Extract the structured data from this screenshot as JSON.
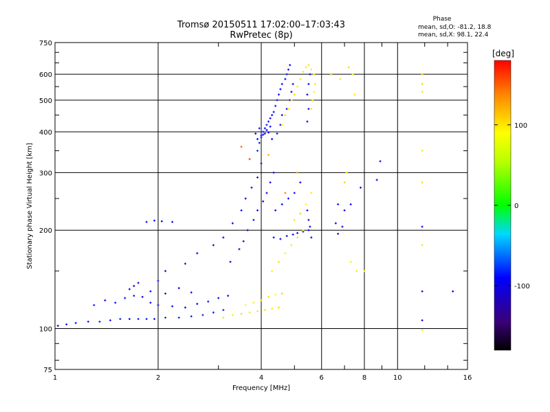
{
  "chart_data": {
    "type": "scatter",
    "title": "Tromsø 20150511 17:02:00–17:03:43",
    "subtitle": "RwPretec (8p)",
    "xlabel": "Frequency [MHz]",
    "ylabel": "Stationary phase Virtual Height [km]",
    "x_scale": "log",
    "y_scale": "log",
    "xlim": [
      1,
      16
    ],
    "ylim": [
      75,
      750
    ],
    "x_ticks": [
      "1",
      "2",
      "4",
      "6",
      "8",
      "10",
      "16"
    ],
    "x_tick_values": [
      1,
      2,
      4,
      6,
      8,
      10,
      16
    ],
    "y_ticks": [
      "75",
      "100",
      "200",
      "300",
      "400",
      "500",
      "600",
      "750"
    ],
    "y_tick_values": [
      75,
      100,
      200,
      300,
      400,
      500,
      600,
      750
    ],
    "grid": true,
    "phase_legend": {
      "title": "Phase",
      "line1": "mean, sd,O: -81.2, 18.8",
      "line2": "mean, sd,X:  98.1, 22.4"
    },
    "colorbar": {
      "label": "[deg]",
      "ticks": [
        "100",
        "0",
        "-100"
      ],
      "tick_values": [
        100,
        0,
        -100
      ],
      "range": [
        -180,
        180
      ]
    },
    "series": [
      {
        "mode": "O",
        "points": [
          [
            1.02,
            102,
            -90
          ],
          [
            1.08,
            103,
            -88
          ],
          [
            1.15,
            104,
            -85
          ],
          [
            1.25,
            105,
            -87
          ],
          [
            1.35,
            105,
            -84
          ],
          [
            1.45,
            106,
            -86
          ],
          [
            1.55,
            107,
            -83
          ],
          [
            1.65,
            107,
            -88
          ],
          [
            1.75,
            107,
            -85
          ],
          [
            1.85,
            107,
            -84
          ],
          [
            1.95,
            107,
            -86
          ],
          [
            2.1,
            108,
            -82
          ],
          [
            2.3,
            108,
            -84
          ],
          [
            2.5,
            109,
            -83
          ],
          [
            2.7,
            110,
            -80
          ],
          [
            2.9,
            112,
            -85
          ],
          [
            3.1,
            114,
            -82
          ],
          [
            1.3,
            118,
            -85
          ],
          [
            1.4,
            122,
            -95
          ],
          [
            1.5,
            120,
            -90
          ],
          [
            1.6,
            124,
            -92
          ],
          [
            1.7,
            126,
            -88
          ],
          [
            1.8,
            125,
            -96
          ],
          [
            1.9,
            120,
            -90
          ],
          [
            2.0,
            118,
            -95
          ],
          [
            2.2,
            117,
            -90
          ],
          [
            2.4,
            116,
            -100
          ],
          [
            2.6,
            119,
            -92
          ],
          [
            2.8,
            121,
            -88
          ],
          [
            3.0,
            124,
            -97
          ],
          [
            3.2,
            126,
            -94
          ],
          [
            1.65,
            132,
            -90
          ],
          [
            1.7,
            135,
            -95
          ],
          [
            1.9,
            130,
            -92
          ],
          [
            2.0,
            140,
            -86
          ],
          [
            2.1,
            128,
            -98
          ],
          [
            1.75,
            138,
            -100
          ],
          [
            2.3,
            133,
            -96
          ],
          [
            2.5,
            129,
            -105
          ],
          [
            1.85,
            212,
            -95
          ],
          [
            1.95,
            214,
            -92
          ],
          [
            2.05,
            213,
            -90
          ],
          [
            2.2,
            212,
            -96
          ],
          [
            2.1,
            150,
            -110
          ],
          [
            2.4,
            158,
            -95
          ],
          [
            2.6,
            170,
            -100
          ],
          [
            2.9,
            180,
            -96
          ],
          [
            3.1,
            190,
            -90
          ],
          [
            3.3,
            210,
            -95
          ],
          [
            3.5,
            230,
            -92
          ],
          [
            3.6,
            250,
            -98
          ],
          [
            3.75,
            270,
            -95
          ],
          [
            3.9,
            290,
            -100
          ],
          [
            4.0,
            320,
            -95
          ],
          [
            3.25,
            160,
            -100
          ],
          [
            3.45,
            175,
            -95
          ],
          [
            3.55,
            185,
            -105
          ],
          [
            3.65,
            200,
            -110
          ],
          [
            3.8,
            215,
            -98
          ],
          [
            3.9,
            230,
            -92
          ],
          [
            4.05,
            245,
            -100
          ],
          [
            4.15,
            260,
            -95
          ],
          [
            4.25,
            280,
            -100
          ],
          [
            4.35,
            300,
            -96
          ],
          [
            3.9,
            350,
            -80
          ],
          [
            3.95,
            370,
            -85
          ],
          [
            4.0,
            390,
            -90
          ],
          [
            4.05,
            400,
            -95
          ],
          [
            4.1,
            410,
            -88
          ],
          [
            4.15,
            420,
            -86
          ],
          [
            4.2,
            430,
            -90
          ],
          [
            4.25,
            440,
            -95
          ],
          [
            4.3,
            450,
            -92
          ],
          [
            4.35,
            460,
            -90
          ],
          [
            4.4,
            480,
            -86
          ],
          [
            4.45,
            500,
            -88
          ],
          [
            4.5,
            520,
            -94
          ],
          [
            4.55,
            540,
            -90
          ],
          [
            4.6,
            560,
            -92
          ],
          [
            4.7,
            580,
            -90
          ],
          [
            4.75,
            600,
            -88
          ],
          [
            4.8,
            620,
            -94
          ],
          [
            4.85,
            640,
            -96
          ],
          [
            3.9,
            380,
            -95
          ],
          [
            4.0,
            385,
            -88
          ],
          [
            4.05,
            392,
            -100
          ],
          [
            4.1,
            395,
            -92
          ],
          [
            4.2,
            398,
            -90
          ],
          [
            3.95,
            410,
            -86
          ],
          [
            4.15,
            405,
            -94
          ],
          [
            3.85,
            395,
            -90
          ],
          [
            4.25,
            415,
            -98
          ],
          [
            4.3,
            380,
            -90
          ],
          [
            4.45,
            395,
            -85
          ],
          [
            4.55,
            420,
            -95
          ],
          [
            4.6,
            450,
            -100
          ],
          [
            4.75,
            470,
            -90
          ],
          [
            4.85,
            500,
            -95
          ],
          [
            4.9,
            530,
            -90
          ],
          [
            4.95,
            560,
            -88
          ],
          [
            4.35,
            190,
            -90
          ],
          [
            4.55,
            188,
            -92
          ],
          [
            4.75,
            192,
            -95
          ],
          [
            4.95,
            194,
            -90
          ],
          [
            5.1,
            196,
            -88
          ],
          [
            5.3,
            198,
            -95
          ],
          [
            5.5,
            200,
            -90
          ],
          [
            4.4,
            230,
            -100
          ],
          [
            4.6,
            240,
            -95
          ],
          [
            4.8,
            250,
            -90
          ],
          [
            5.0,
            260,
            -98
          ],
          [
            5.2,
            280,
            -92
          ],
          [
            5.45,
            520,
            -90
          ],
          [
            5.5,
            560,
            -95
          ],
          [
            5.55,
            600,
            -92
          ],
          [
            5.5,
            470,
            -88
          ],
          [
            5.45,
            430,
            -92
          ],
          [
            5.45,
            230,
            -110
          ],
          [
            5.5,
            215,
            -120
          ],
          [
            5.55,
            205,
            -100
          ],
          [
            5.6,
            190,
            -115
          ],
          [
            6.6,
            210,
            -95
          ],
          [
            6.7,
            240,
            -100
          ],
          [
            6.9,
            205,
            -110
          ],
          [
            7.0,
            230,
            -95
          ],
          [
            7.3,
            240,
            -90
          ],
          [
            6.7,
            195,
            -100
          ],
          [
            7.8,
            270,
            -100
          ],
          [
            8.7,
            285,
            -90
          ],
          [
            8.9,
            325,
            -95
          ],
          [
            11.8,
            205,
            -95
          ],
          [
            11.8,
            130,
            -92
          ],
          [
            11.8,
            106,
            -110
          ],
          [
            14.5,
            130,
            -95
          ]
        ]
      },
      {
        "mode": "X",
        "points": [
          [
            3.1,
            108,
            100
          ],
          [
            3.3,
            110,
            95
          ],
          [
            3.5,
            111,
            105
          ],
          [
            3.7,
            112,
            98
          ],
          [
            3.9,
            113,
            100
          ],
          [
            4.1,
            114,
            102
          ],
          [
            4.3,
            115,
            96
          ],
          [
            4.5,
            116,
            104
          ],
          [
            3.6,
            118,
            90
          ],
          [
            3.8,
            120,
            95
          ],
          [
            4.0,
            122,
            110
          ],
          [
            4.2,
            125,
            100
          ],
          [
            4.4,
            127,
            92
          ],
          [
            4.6,
            128,
            106
          ],
          [
            4.3,
            150,
            98
          ],
          [
            4.5,
            160,
            102
          ],
          [
            4.7,
            170,
            95
          ],
          [
            4.9,
            180,
            100
          ],
          [
            5.1,
            190,
            104
          ],
          [
            5.3,
            200,
            96
          ],
          [
            5.0,
            215,
            98
          ],
          [
            5.2,
            225,
            105
          ],
          [
            5.4,
            240,
            95
          ],
          [
            5.6,
            260,
            100
          ],
          [
            4.6,
            420,
            98
          ],
          [
            4.7,
            450,
            102
          ],
          [
            4.8,
            470,
            96
          ],
          [
            4.9,
            500,
            100
          ],
          [
            5.0,
            520,
            105
          ],
          [
            5.1,
            550,
            95
          ],
          [
            5.2,
            580,
            100
          ],
          [
            5.3,
            610,
            102
          ],
          [
            5.4,
            630,
            98
          ],
          [
            5.5,
            640,
            104
          ],
          [
            5.6,
            620,
            95
          ],
          [
            5.7,
            600,
            100
          ],
          [
            5.6,
            470,
            100
          ],
          [
            5.65,
            500,
            105
          ],
          [
            5.7,
            530,
            95
          ],
          [
            5.75,
            560,
            98
          ],
          [
            6.4,
            600,
            110
          ],
          [
            6.8,
            580,
            100
          ],
          [
            7.2,
            630,
            105
          ],
          [
            7.4,
            600,
            95
          ],
          [
            7.5,
            520,
            100
          ],
          [
            7.0,
            280,
            110
          ],
          [
            7.1,
            300,
            100
          ],
          [
            7.3,
            160,
            95
          ],
          [
            7.6,
            150,
            100
          ],
          [
            8.0,
            150,
            105
          ],
          [
            11.8,
            600,
            110
          ],
          [
            11.8,
            560,
            105
          ],
          [
            11.8,
            530,
            100
          ],
          [
            11.8,
            350,
            98
          ],
          [
            11.8,
            280,
            102
          ],
          [
            11.8,
            180,
            100
          ],
          [
            11.8,
            99,
            95
          ],
          [
            3.5,
            360,
            150
          ],
          [
            3.7,
            330,
            160
          ],
          [
            4.2,
            340,
            120
          ],
          [
            5.1,
            300,
            130
          ],
          [
            4.7,
            260,
            140
          ]
        ]
      }
    ]
  }
}
